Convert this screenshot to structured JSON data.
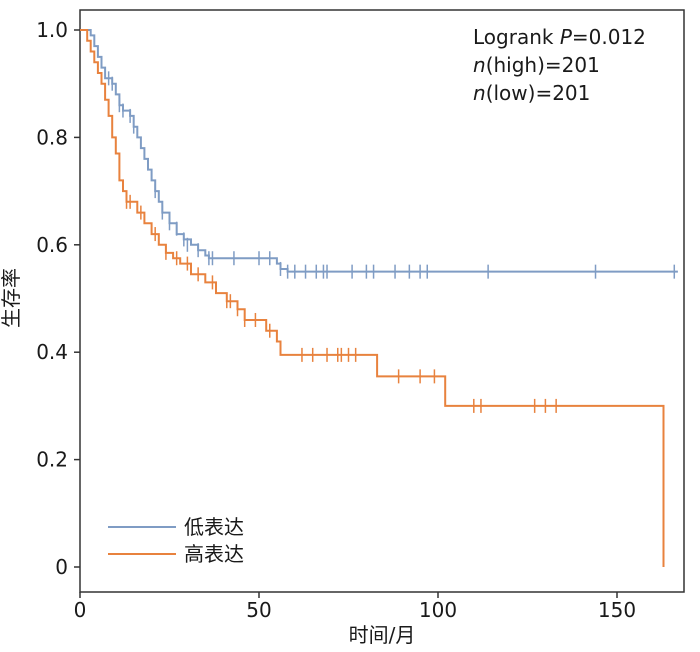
{
  "chart_data": {
    "type": "line",
    "subtype": "kaplan-meier",
    "xlabel": "时间/月",
    "ylabel": "生存率",
    "xlim": [
      0,
      168
    ],
    "ylim": [
      0,
      1.0
    ],
    "xticks": [
      0,
      50,
      100,
      150
    ],
    "yticks": [
      {
        "value": 0,
        "label": "0"
      },
      {
        "value": 0.2,
        "label": "0.2"
      },
      {
        "value": 0.4,
        "label": "0.4"
      },
      {
        "value": 0.6,
        "label": "0.6"
      },
      {
        "value": 0.8,
        "label": "0.8"
      },
      {
        "value": 1.0,
        "label": "1.0"
      }
    ],
    "grid": false,
    "legend_position": "bottom-left",
    "annotation": {
      "logrank_label": "Logrank ",
      "p_symbol": "P",
      "p_text": "=0.012",
      "n_symbol": "n",
      "n_high_text": "(high)=201",
      "n_low_text": "(low)=201"
    },
    "series": [
      {
        "name": "低表达",
        "color": "#7f9cc4",
        "steps": [
          [
            0,
            1.0
          ],
          [
            3,
            0.99
          ],
          [
            4,
            0.97
          ],
          [
            5,
            0.95
          ],
          [
            6,
            0.93
          ],
          [
            7,
            0.91
          ],
          [
            9,
            0.9
          ],
          [
            10,
            0.88
          ],
          [
            11,
            0.86
          ],
          [
            12,
            0.85
          ],
          [
            14,
            0.84
          ],
          [
            15,
            0.82
          ],
          [
            16,
            0.8
          ],
          [
            17,
            0.78
          ],
          [
            18,
            0.76
          ],
          [
            19,
            0.74
          ],
          [
            20,
            0.72
          ],
          [
            21,
            0.7
          ],
          [
            22,
            0.68
          ],
          [
            23,
            0.66
          ],
          [
            25,
            0.64
          ],
          [
            27,
            0.62
          ],
          [
            29,
            0.61
          ],
          [
            31,
            0.6
          ],
          [
            33,
            0.59
          ],
          [
            35,
            0.58
          ],
          [
            36,
            0.575
          ],
          [
            55,
            0.565
          ],
          [
            56,
            0.555
          ],
          [
            58,
            0.55
          ],
          [
            167,
            0.55
          ]
        ],
        "censors": [
          [
            8,
            0.91
          ],
          [
            9,
            0.9
          ],
          [
            11,
            0.86
          ],
          [
            12,
            0.85
          ],
          [
            14,
            0.84
          ],
          [
            15,
            0.82
          ],
          [
            21,
            0.7
          ],
          [
            23,
            0.66
          ],
          [
            25,
            0.64
          ],
          [
            27,
            0.63
          ],
          [
            29,
            0.61
          ],
          [
            30,
            0.6
          ],
          [
            33,
            0.59
          ],
          [
            36,
            0.575
          ],
          [
            37,
            0.575
          ],
          [
            43,
            0.575
          ],
          [
            50,
            0.575
          ],
          [
            53,
            0.575
          ],
          [
            56,
            0.555
          ],
          [
            58,
            0.55
          ],
          [
            60,
            0.55
          ],
          [
            63,
            0.55
          ],
          [
            66,
            0.55
          ],
          [
            68,
            0.55
          ],
          [
            69,
            0.55
          ],
          [
            76,
            0.55
          ],
          [
            80,
            0.55
          ],
          [
            82,
            0.55
          ],
          [
            88,
            0.55
          ],
          [
            92,
            0.55
          ],
          [
            95,
            0.55
          ],
          [
            97,
            0.55
          ],
          [
            114,
            0.55
          ],
          [
            144,
            0.55
          ],
          [
            166,
            0.55
          ]
        ]
      },
      {
        "name": "高表达",
        "color": "#e8823e",
        "steps": [
          [
            0,
            1.0
          ],
          [
            2,
            0.98
          ],
          [
            3,
            0.96
          ],
          [
            4,
            0.94
          ],
          [
            5,
            0.92
          ],
          [
            6,
            0.9
          ],
          [
            7,
            0.87
          ],
          [
            8,
            0.84
          ],
          [
            9,
            0.8
          ],
          [
            10,
            0.77
          ],
          [
            11,
            0.72
          ],
          [
            12,
            0.7
          ],
          [
            13,
            0.68
          ],
          [
            16,
            0.66
          ],
          [
            18,
            0.64
          ],
          [
            20,
            0.62
          ],
          [
            22,
            0.6
          ],
          [
            24,
            0.585
          ],
          [
            26,
            0.575
          ],
          [
            28,
            0.565
          ],
          [
            31,
            0.545
          ],
          [
            35,
            0.53
          ],
          [
            38,
            0.51
          ],
          [
            41,
            0.495
          ],
          [
            44,
            0.48
          ],
          [
            46,
            0.46
          ],
          [
            52,
            0.44
          ],
          [
            55,
            0.42
          ],
          [
            56,
            0.395
          ],
          [
            83,
            0.355
          ],
          [
            102,
            0.3
          ],
          [
            163,
            0.3
          ],
          [
            163,
            0.0
          ]
        ],
        "censors": [
          [
            13,
            0.68
          ],
          [
            14,
            0.68
          ],
          [
            17,
            0.66
          ],
          [
            21,
            0.62
          ],
          [
            24,
            0.585
          ],
          [
            27,
            0.575
          ],
          [
            30,
            0.565
          ],
          [
            33,
            0.545
          ],
          [
            37,
            0.53
          ],
          [
            41,
            0.495
          ],
          [
            42,
            0.495
          ],
          [
            44,
            0.48
          ],
          [
            46,
            0.46
          ],
          [
            49,
            0.46
          ],
          [
            53,
            0.44
          ],
          [
            62,
            0.395
          ],
          [
            65,
            0.395
          ],
          [
            69,
            0.395
          ],
          [
            72,
            0.395
          ],
          [
            73,
            0.395
          ],
          [
            75,
            0.395
          ],
          [
            77,
            0.395
          ],
          [
            89,
            0.355
          ],
          [
            95,
            0.355
          ],
          [
            99,
            0.355
          ],
          [
            110,
            0.3
          ],
          [
            112,
            0.3
          ],
          [
            127,
            0.3
          ],
          [
            130,
            0.3
          ],
          [
            133,
            0.3
          ]
        ]
      }
    ]
  }
}
